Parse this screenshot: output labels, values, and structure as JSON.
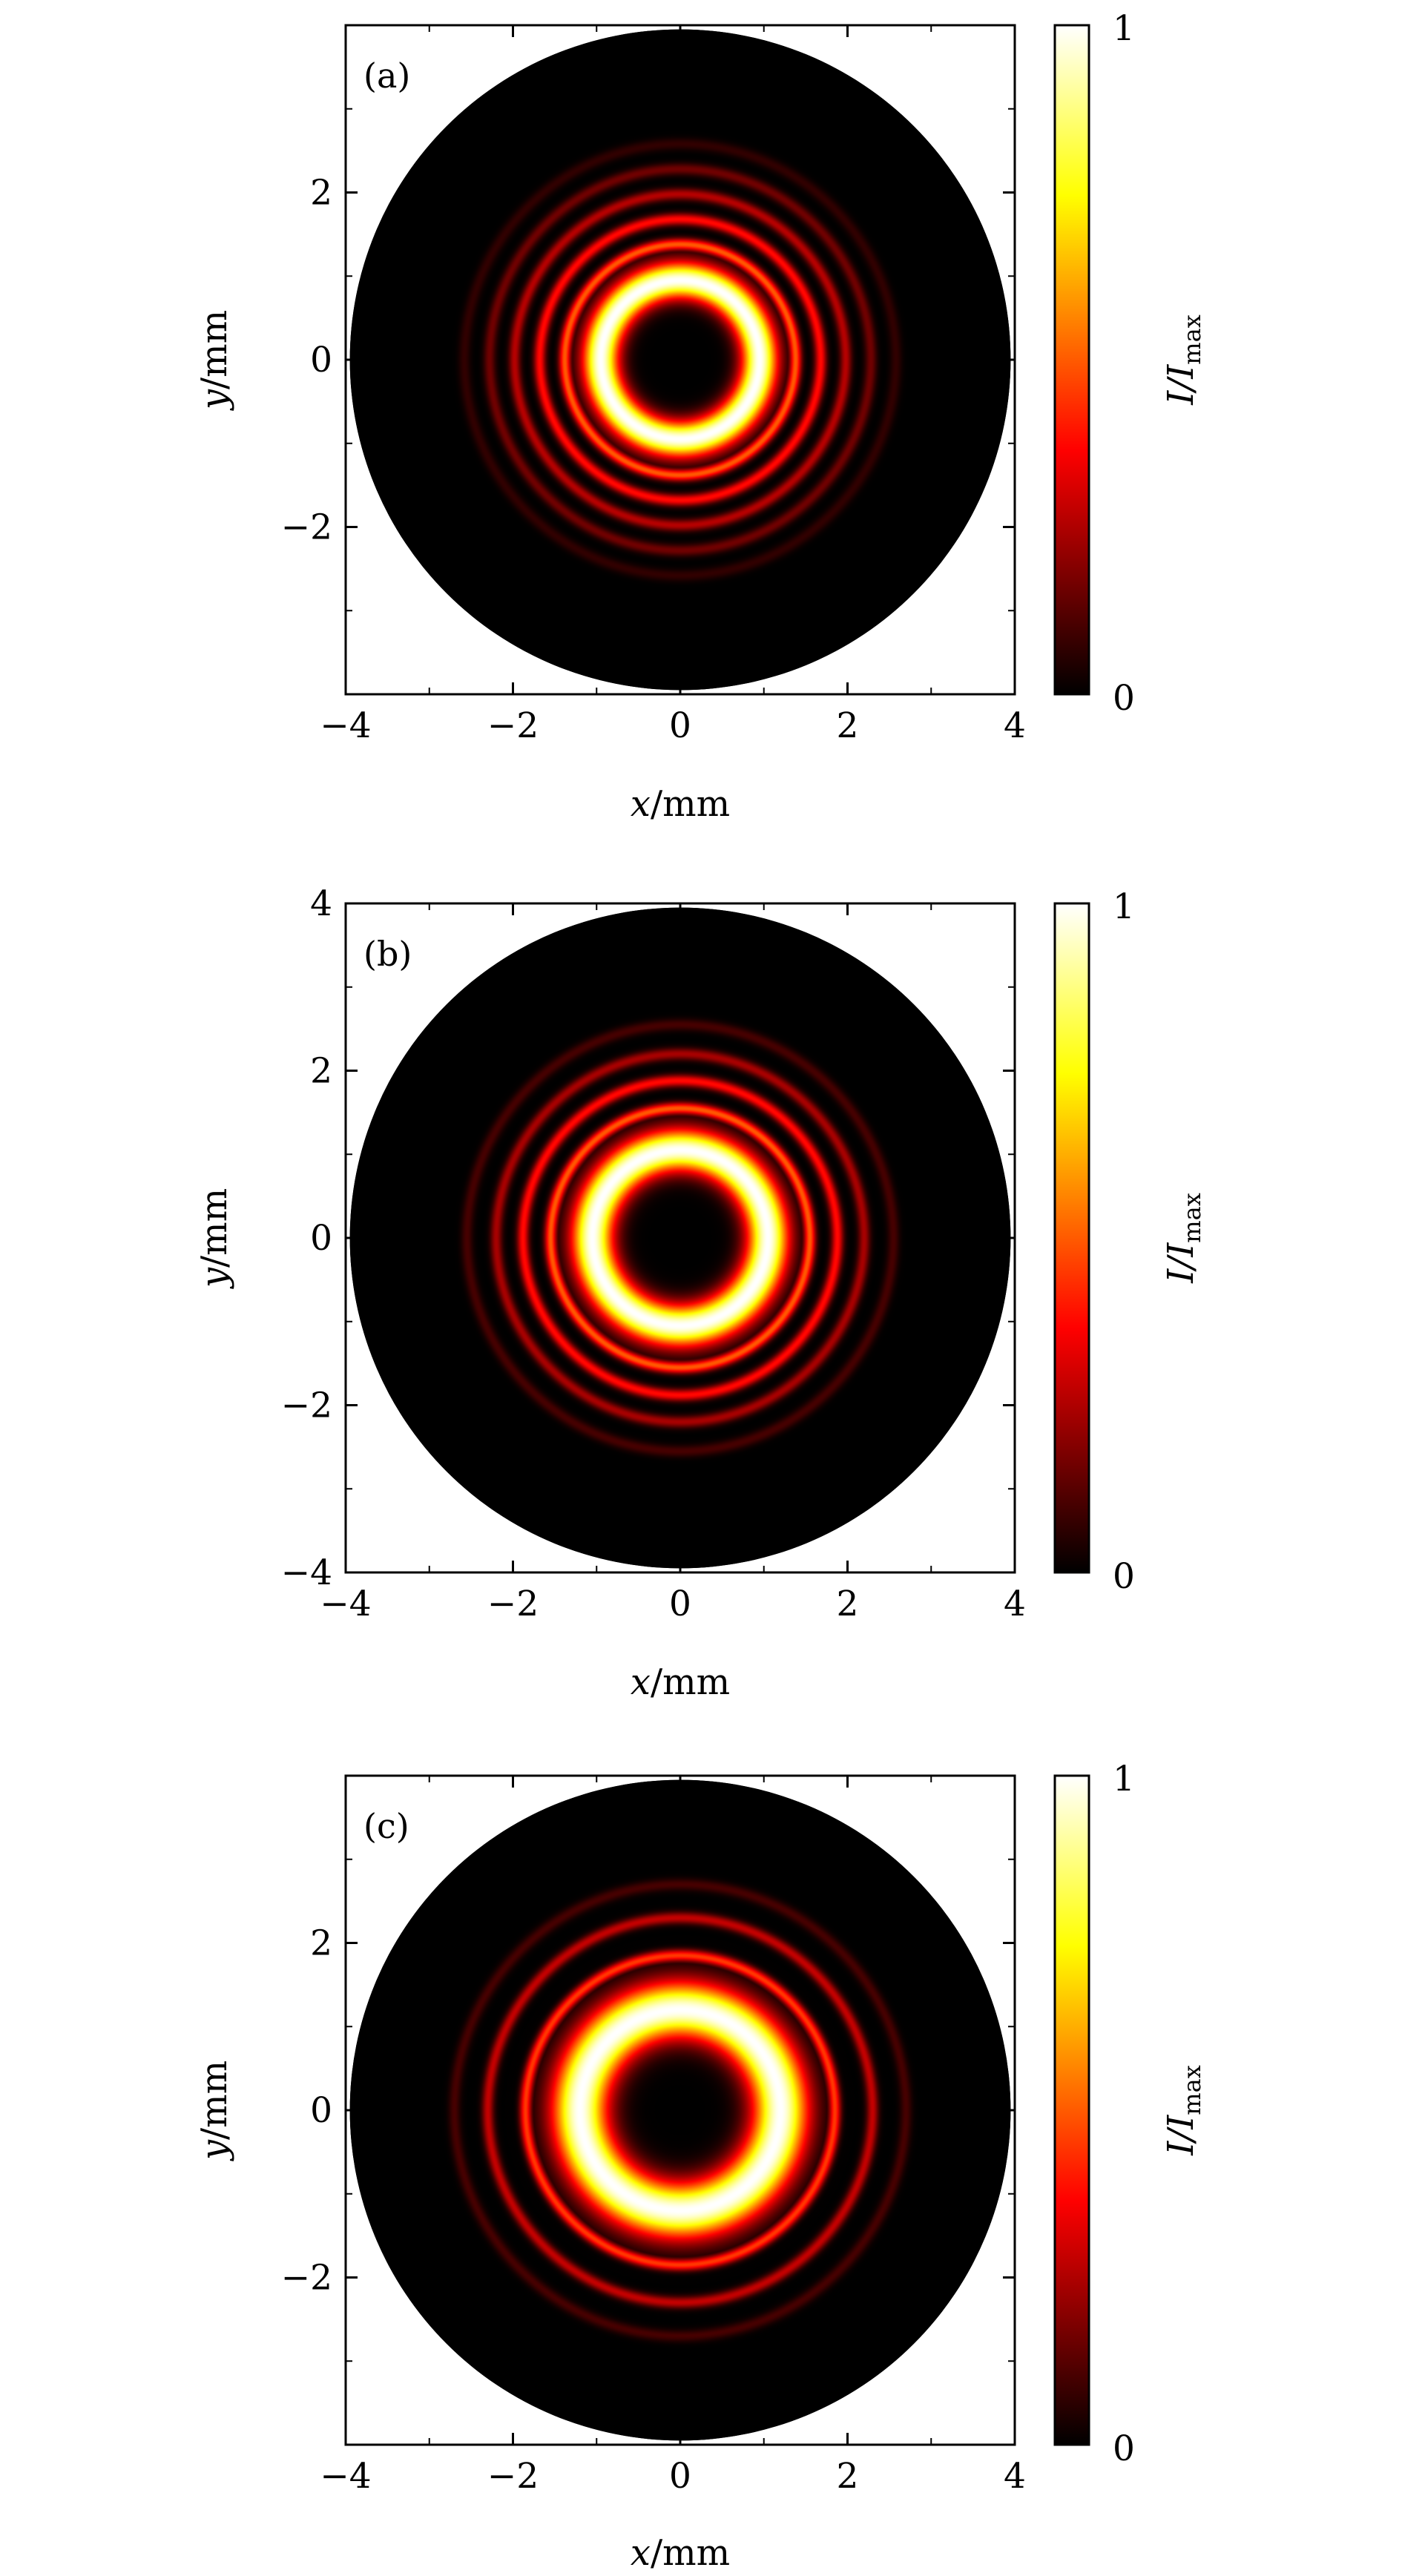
{
  "chart_data": [
    {
      "type": "heatmap",
      "panel_label": "(a)",
      "xlabel": {
        "var": "x",
        "unit": "/mm"
      },
      "ylabel": {
        "var": "y",
        "unit": "/mm"
      },
      "xlim": [
        -4,
        4
      ],
      "ylim": [
        -4,
        4
      ],
      "xticks": [
        -4,
        -2,
        0,
        2,
        4
      ],
      "yticks": [
        -2,
        0,
        2
      ],
      "colorbar": {
        "label": "I/I",
        "label_sub": "max",
        "range": [
          0,
          1
        ],
        "ticks": [
          "0",
          "1"
        ],
        "colormap": "hot"
      },
      "aperture_radius_mm": 3.95,
      "main_ring": {
        "radius_mm": 0.95,
        "width_mm": 0.26,
        "peak": 1.0
      },
      "outer_rings": [
        {
          "radius_mm": 1.38,
          "intensity": 0.5
        },
        {
          "radius_mm": 1.68,
          "intensity": 0.38
        },
        {
          "radius_mm": 1.98,
          "intensity": 0.26
        },
        {
          "radius_mm": 2.28,
          "intensity": 0.16
        },
        {
          "radius_mm": 2.58,
          "intensity": 0.07
        }
      ]
    },
    {
      "type": "heatmap",
      "panel_label": "(b)",
      "xlabel": {
        "var": "x",
        "unit": "/mm"
      },
      "ylabel": {
        "var": "y",
        "unit": "/mm"
      },
      "xlim": [
        -4,
        4
      ],
      "ylim": [
        -4,
        4
      ],
      "xticks": [
        -4,
        -2,
        0,
        2,
        4
      ],
      "yticks": [
        -4,
        -2,
        0,
        2,
        4
      ],
      "colorbar": {
        "label": "I/I",
        "label_sub": "max",
        "range": [
          0,
          1
        ],
        "ticks": [
          "0",
          "1"
        ],
        "colormap": "hot"
      },
      "aperture_radius_mm": 3.95,
      "main_ring": {
        "radius_mm": 1.05,
        "width_mm": 0.3,
        "peak": 1.0
      },
      "outer_rings": [
        {
          "radius_mm": 1.55,
          "intensity": 0.5
        },
        {
          "radius_mm": 1.88,
          "intensity": 0.38
        },
        {
          "radius_mm": 2.2,
          "intensity": 0.24
        },
        {
          "radius_mm": 2.55,
          "intensity": 0.1
        }
      ]
    },
    {
      "type": "heatmap",
      "panel_label": "(c)",
      "xlabel": {
        "var": "x",
        "unit": "/mm"
      },
      "ylabel": {
        "var": "y",
        "unit": "/mm"
      },
      "xlim": [
        -4,
        4
      ],
      "ylim": [
        -4,
        4
      ],
      "xticks": [
        -4,
        -2,
        0,
        2,
        4
      ],
      "yticks": [
        -2,
        0,
        2
      ],
      "colorbar": {
        "label": "I/I",
        "label_sub": "max",
        "range": [
          0,
          1
        ],
        "ticks": [
          "0",
          "1"
        ],
        "colormap": "hot"
      },
      "aperture_radius_mm": 3.95,
      "main_ring": {
        "radius_mm": 1.2,
        "width_mm": 0.4,
        "peak": 1.0
      },
      "outer_rings": [
        {
          "radius_mm": 1.85,
          "intensity": 0.45
        },
        {
          "radius_mm": 2.3,
          "intensity": 0.28
        },
        {
          "radius_mm": 2.7,
          "intensity": 0.1
        }
      ]
    }
  ]
}
